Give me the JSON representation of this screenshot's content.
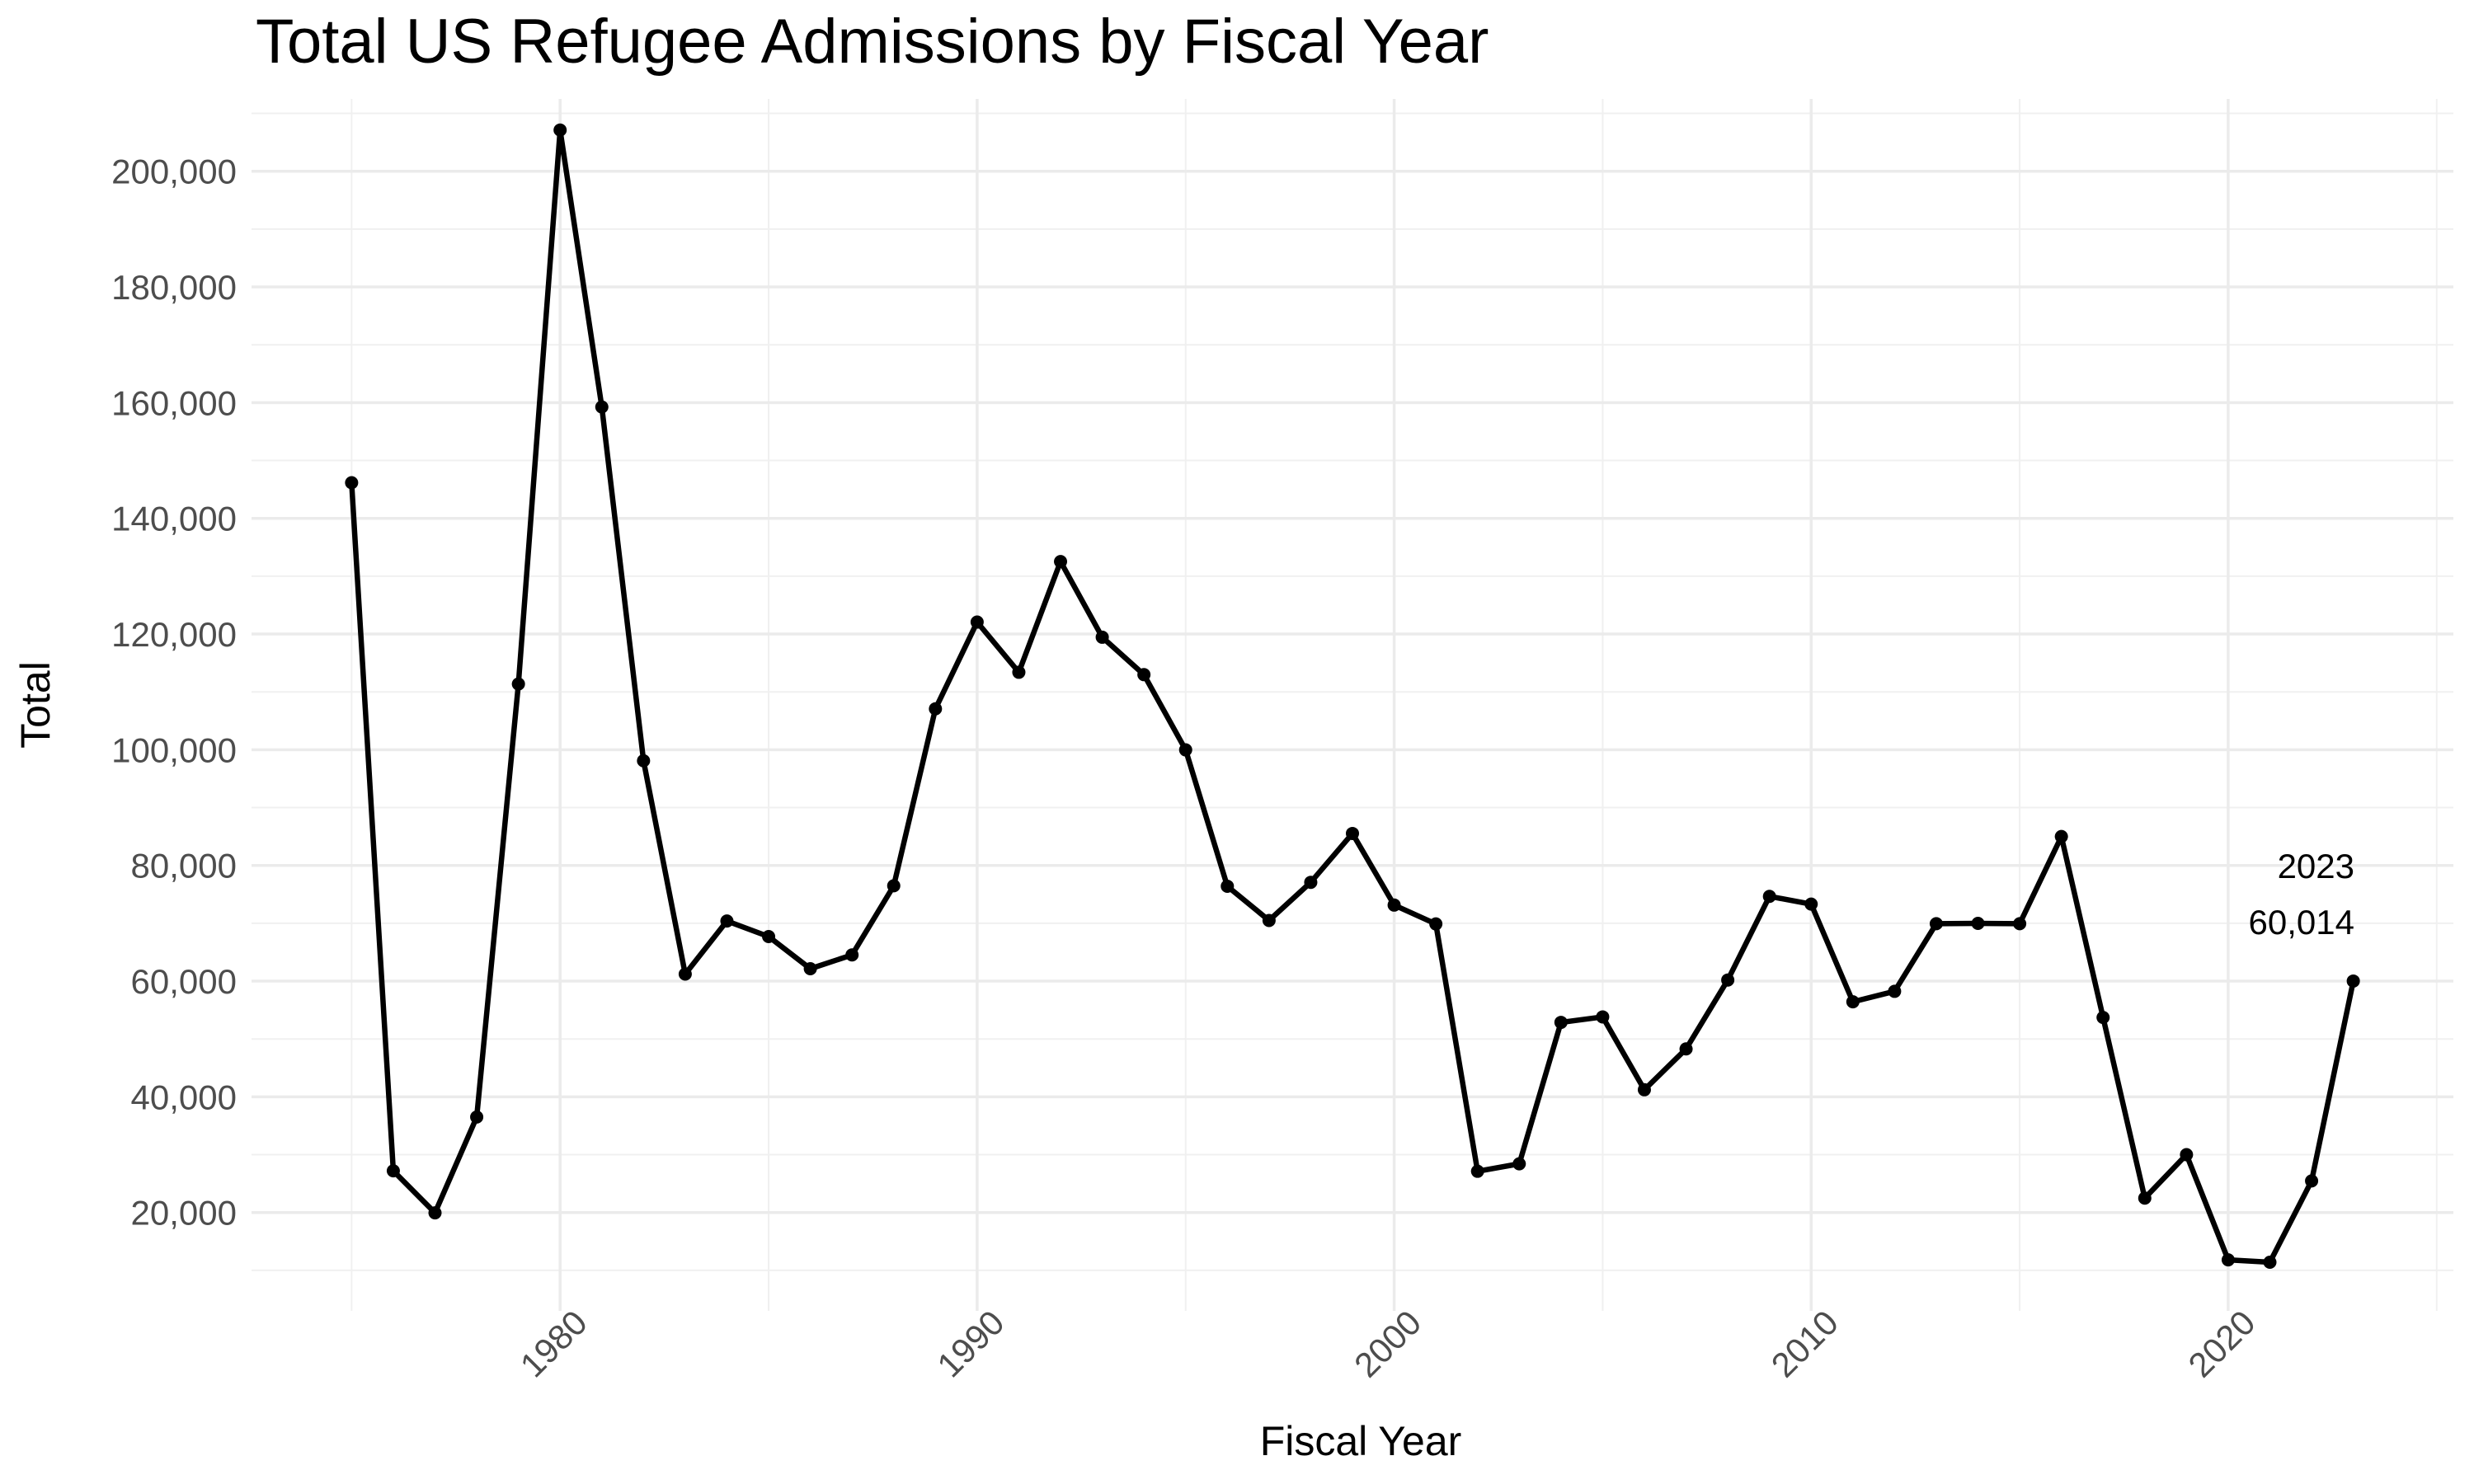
{
  "chart_data": {
    "type": "line",
    "title": "Total US Refugee Admissions by Fiscal Year",
    "xlabel": "Fiscal Year",
    "ylabel": "Total",
    "xlim": [
      1972.6,
      2025.4
    ],
    "ylim": [
      3000,
      212500
    ],
    "x_ticks": [
      1980,
      1990,
      2000,
      2010,
      2020
    ],
    "x_tick_labels": [
      "1980",
      "1990",
      "2000",
      "2010",
      "2020"
    ],
    "y_ticks": [
      20000,
      40000,
      60000,
      80000,
      100000,
      120000,
      140000,
      160000,
      180000,
      200000
    ],
    "y_tick_labels": [
      "20,000",
      "40,000",
      "60,000",
      "80,000",
      "100,000",
      "120,000",
      "140,000",
      "160,000",
      "180,000",
      "200,000"
    ],
    "grid": true,
    "line_color": "#000000",
    "series": [
      {
        "name": "Total",
        "x": [
          1975,
          1976,
          1977,
          1978,
          1979,
          1980,
          1981,
          1982,
          1983,
          1984,
          1985,
          1986,
          1987,
          1988,
          1989,
          1990,
          1991,
          1992,
          1993,
          1994,
          1995,
          1996,
          1997,
          1998,
          1999,
          2000,
          2001,
          2002,
          2003,
          2004,
          2005,
          2006,
          2007,
          2008,
          2009,
          2010,
          2011,
          2012,
          2013,
          2014,
          2015,
          2016,
          2017,
          2018,
          2019,
          2020,
          2021,
          2022,
          2023
        ],
        "values": [
          146158,
          27206,
          19946,
          36507,
          111363,
          207116,
          159252,
          98096,
          61218,
          70393,
          67704,
          62146,
          64528,
          76483,
          107070,
          122066,
          113389,
          132531,
          119448,
          112981,
          99974,
          76403,
          70488,
          77080,
          85525,
          73147,
          69886,
          27131,
          28422,
          52868,
          53813,
          41223,
          48282,
          60191,
          74654,
          73311,
          56424,
          58238,
          69926,
          69987,
          69933,
          84994,
          53716,
          22491,
          30000,
          11814,
          11411,
          25465,
          60014
        ]
      }
    ],
    "annotations": [
      {
        "x": 2023,
        "y": 60014,
        "label_year": "2023",
        "label_value": "60,014"
      }
    ]
  }
}
